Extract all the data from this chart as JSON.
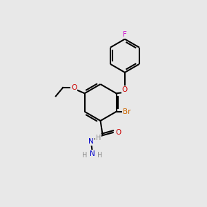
{
  "background_color": "#e8e8e8",
  "bond_color": "#000000",
  "bond_width": 1.5,
  "atom_colors": {
    "F": "#cc00cc",
    "O": "#cc0000",
    "Br": "#cc6600",
    "N": "#0000cc",
    "C": "#000000",
    "H": "#888888"
  },
  "figsize": [
    3.0,
    3.0
  ],
  "dpi": 100,
  "xlim": [
    0,
    10
  ],
  "ylim": [
    0,
    10
  ]
}
